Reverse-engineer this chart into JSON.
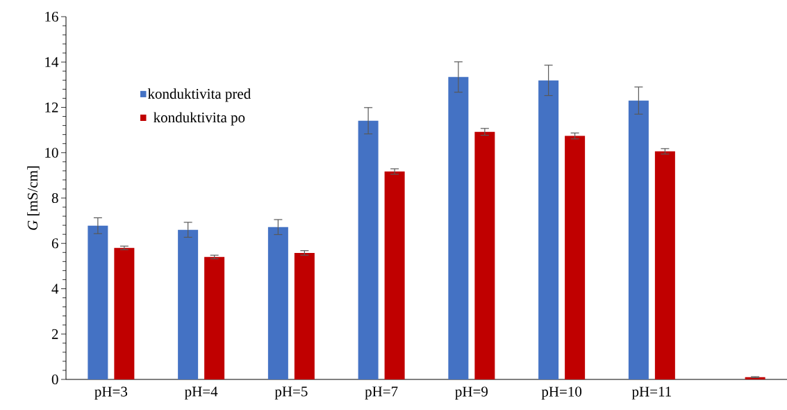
{
  "chart_data": {
    "type": "bar",
    "ylabel": "*G* [mS/cm]",
    "categories": [
      "pH=3",
      "pH=4",
      "pH=5",
      "pH=7",
      "pH=9",
      "pH=10",
      "pH=11",
      null
    ],
    "series": [
      {
        "name": "konduktivita pred",
        "color": "#4472c4",
        "values": [
          6.78,
          6.6,
          6.72,
          11.41,
          13.34,
          13.19,
          12.3,
          null
        ],
        "errors": [
          0.35,
          0.33,
          0.33,
          0.58,
          0.67,
          0.67,
          0.6,
          null
        ]
      },
      {
        "name": "konduktivita po",
        "color": "#c00000",
        "values": [
          5.8,
          5.4,
          5.58,
          9.17,
          10.92,
          10.74,
          10.06,
          0.1
        ],
        "errors": [
          0.08,
          0.08,
          0.1,
          0.12,
          0.15,
          0.13,
          0.12,
          0.02
        ]
      }
    ],
    "ylim": [
      0,
      16
    ],
    "yticks": [
      0,
      2,
      4,
      6,
      8,
      10,
      12,
      14,
      16
    ],
    "legend": "top left",
    "grid": false
  }
}
